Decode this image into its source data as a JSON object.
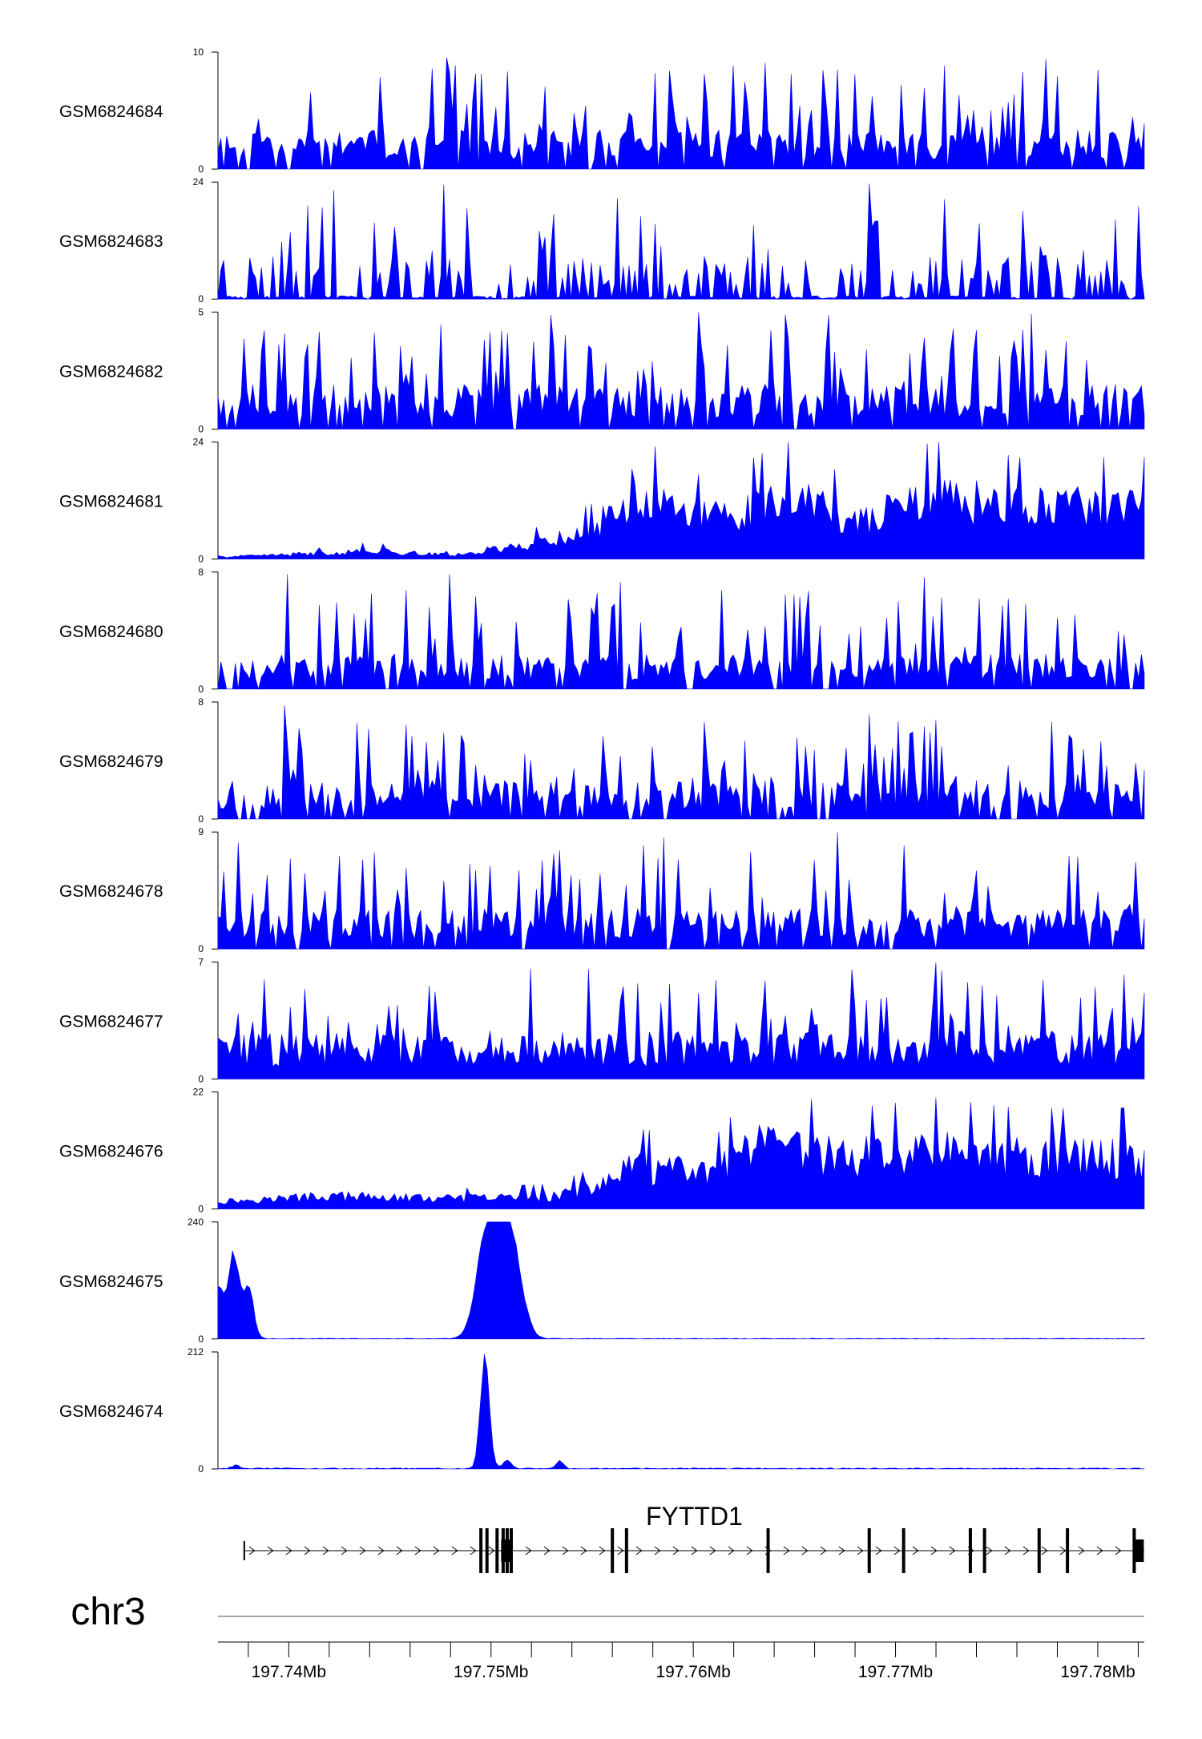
{
  "chart_data": {
    "type": "area",
    "chromosome": "chr3",
    "x_range_mb": [
      197.7365,
      197.7823
    ],
    "gene": {
      "name": "FYTTD1",
      "start_mb": 197.7378,
      "end_mb": 197.7823,
      "strand": "+",
      "exons_mb": [
        197.7495,
        197.7498,
        197.7503,
        197.7506,
        197.7508,
        197.751,
        197.756,
        197.7567,
        197.7637,
        197.7687,
        197.7704,
        197.7737,
        197.7744,
        197.7771,
        197.7785,
        197.7818
      ]
    },
    "x_ticks": [
      {
        "value": 197.74,
        "label": "197.74Mb"
      },
      {
        "value": 197.75,
        "label": "197.75Mb"
      },
      {
        "value": 197.76,
        "label": "197.76Mb"
      },
      {
        "value": 197.77,
        "label": "197.77Mb"
      },
      {
        "value": 197.78,
        "label": "197.78Mb"
      }
    ],
    "series": [
      {
        "name": "GSM6824684",
        "ymin": "0",
        "ymax": "10",
        "max": 10,
        "pattern": "spiky",
        "baseline": 2.8,
        "seed": 11
      },
      {
        "name": "GSM6824683",
        "ymin": "0",
        "ymax": "24",
        "max": 24,
        "pattern": "sparse",
        "baseline": 7,
        "seed": 23
      },
      {
        "name": "GSM6824682",
        "ymin": "0",
        "ymax": "5",
        "max": 5,
        "pattern": "spiky",
        "baseline": 1.6,
        "seed": 37
      },
      {
        "name": "GSM6824681",
        "ymin": "0",
        "ymax": "24",
        "max": 24,
        "pattern": "step",
        "profile": [
          [
            197.7365,
            0.4
          ],
          [
            197.742,
            1.3
          ],
          [
            197.744,
            1.8
          ],
          [
            197.748,
            0.8
          ],
          [
            197.752,
            3.2
          ],
          [
            197.755,
            6
          ],
          [
            197.757,
            14
          ],
          [
            197.76,
            9
          ],
          [
            197.762,
            10
          ],
          [
            197.765,
            13
          ],
          [
            197.768,
            8
          ],
          [
            197.772,
            13
          ],
          [
            197.776,
            11
          ],
          [
            197.7823,
            11
          ]
        ],
        "seed": 41
      },
      {
        "name": "GSM6824680",
        "ymin": "0",
        "ymax": "8",
        "max": 8,
        "pattern": "spiky",
        "baseline": 2.0,
        "seed": 53
      },
      {
        "name": "GSM6824679",
        "ymin": "0",
        "ymax": "8",
        "max": 8,
        "pattern": "spiky",
        "baseline": 2.2,
        "seed": 67
      },
      {
        "name": "GSM6824678",
        "ymin": "0",
        "ymax": "9",
        "max": 9,
        "pattern": "spiky",
        "baseline": 2.6,
        "seed": 71
      },
      {
        "name": "GSM6824677",
        "ymin": "0",
        "ymax": "7",
        "max": 7,
        "pattern": "dense",
        "baseline": 2.4,
        "seed": 83
      },
      {
        "name": "GSM6824676",
        "ymin": "0",
        "ymax": "22",
        "max": 22,
        "pattern": "step",
        "profile": [
          [
            197.7365,
            1.5
          ],
          [
            197.742,
            2.5
          ],
          [
            197.748,
            2.0
          ],
          [
            197.753,
            2.5
          ],
          [
            197.755,
            4
          ],
          [
            197.757,
            8
          ],
          [
            197.761,
            7
          ],
          [
            197.763,
            12
          ],
          [
            197.768,
            10
          ],
          [
            197.772,
            11
          ],
          [
            197.776,
            10
          ],
          [
            197.7823,
            10
          ]
        ],
        "seed": 97
      },
      {
        "name": "GSM6824675",
        "ymin": "0",
        "ymax": "240",
        "max": 240,
        "pattern": "peaks",
        "peaks": [
          [
            197.7365,
            0.00035,
            110
          ],
          [
            197.7373,
            0.00025,
            170
          ],
          [
            197.738,
            0.00025,
            110
          ],
          [
            197.7497,
            0.0005,
            120
          ],
          [
            197.7503,
            0.0006,
            190
          ],
          [
            197.7511,
            0.0005,
            140
          ]
        ],
        "noise": 1.5,
        "seed": 101
      },
      {
        "name": "GSM6824674",
        "ymin": "0",
        "ymax": "212",
        "max": 212,
        "pattern": "peaks",
        "peaks": [
          [
            197.7497,
            0.00022,
            205
          ],
          [
            197.7508,
            0.0002,
            15
          ],
          [
            197.7534,
            0.00018,
            14
          ],
          [
            197.7374,
            0.0002,
            6
          ]
        ],
        "noise": 2,
        "seed": 113
      }
    ]
  }
}
